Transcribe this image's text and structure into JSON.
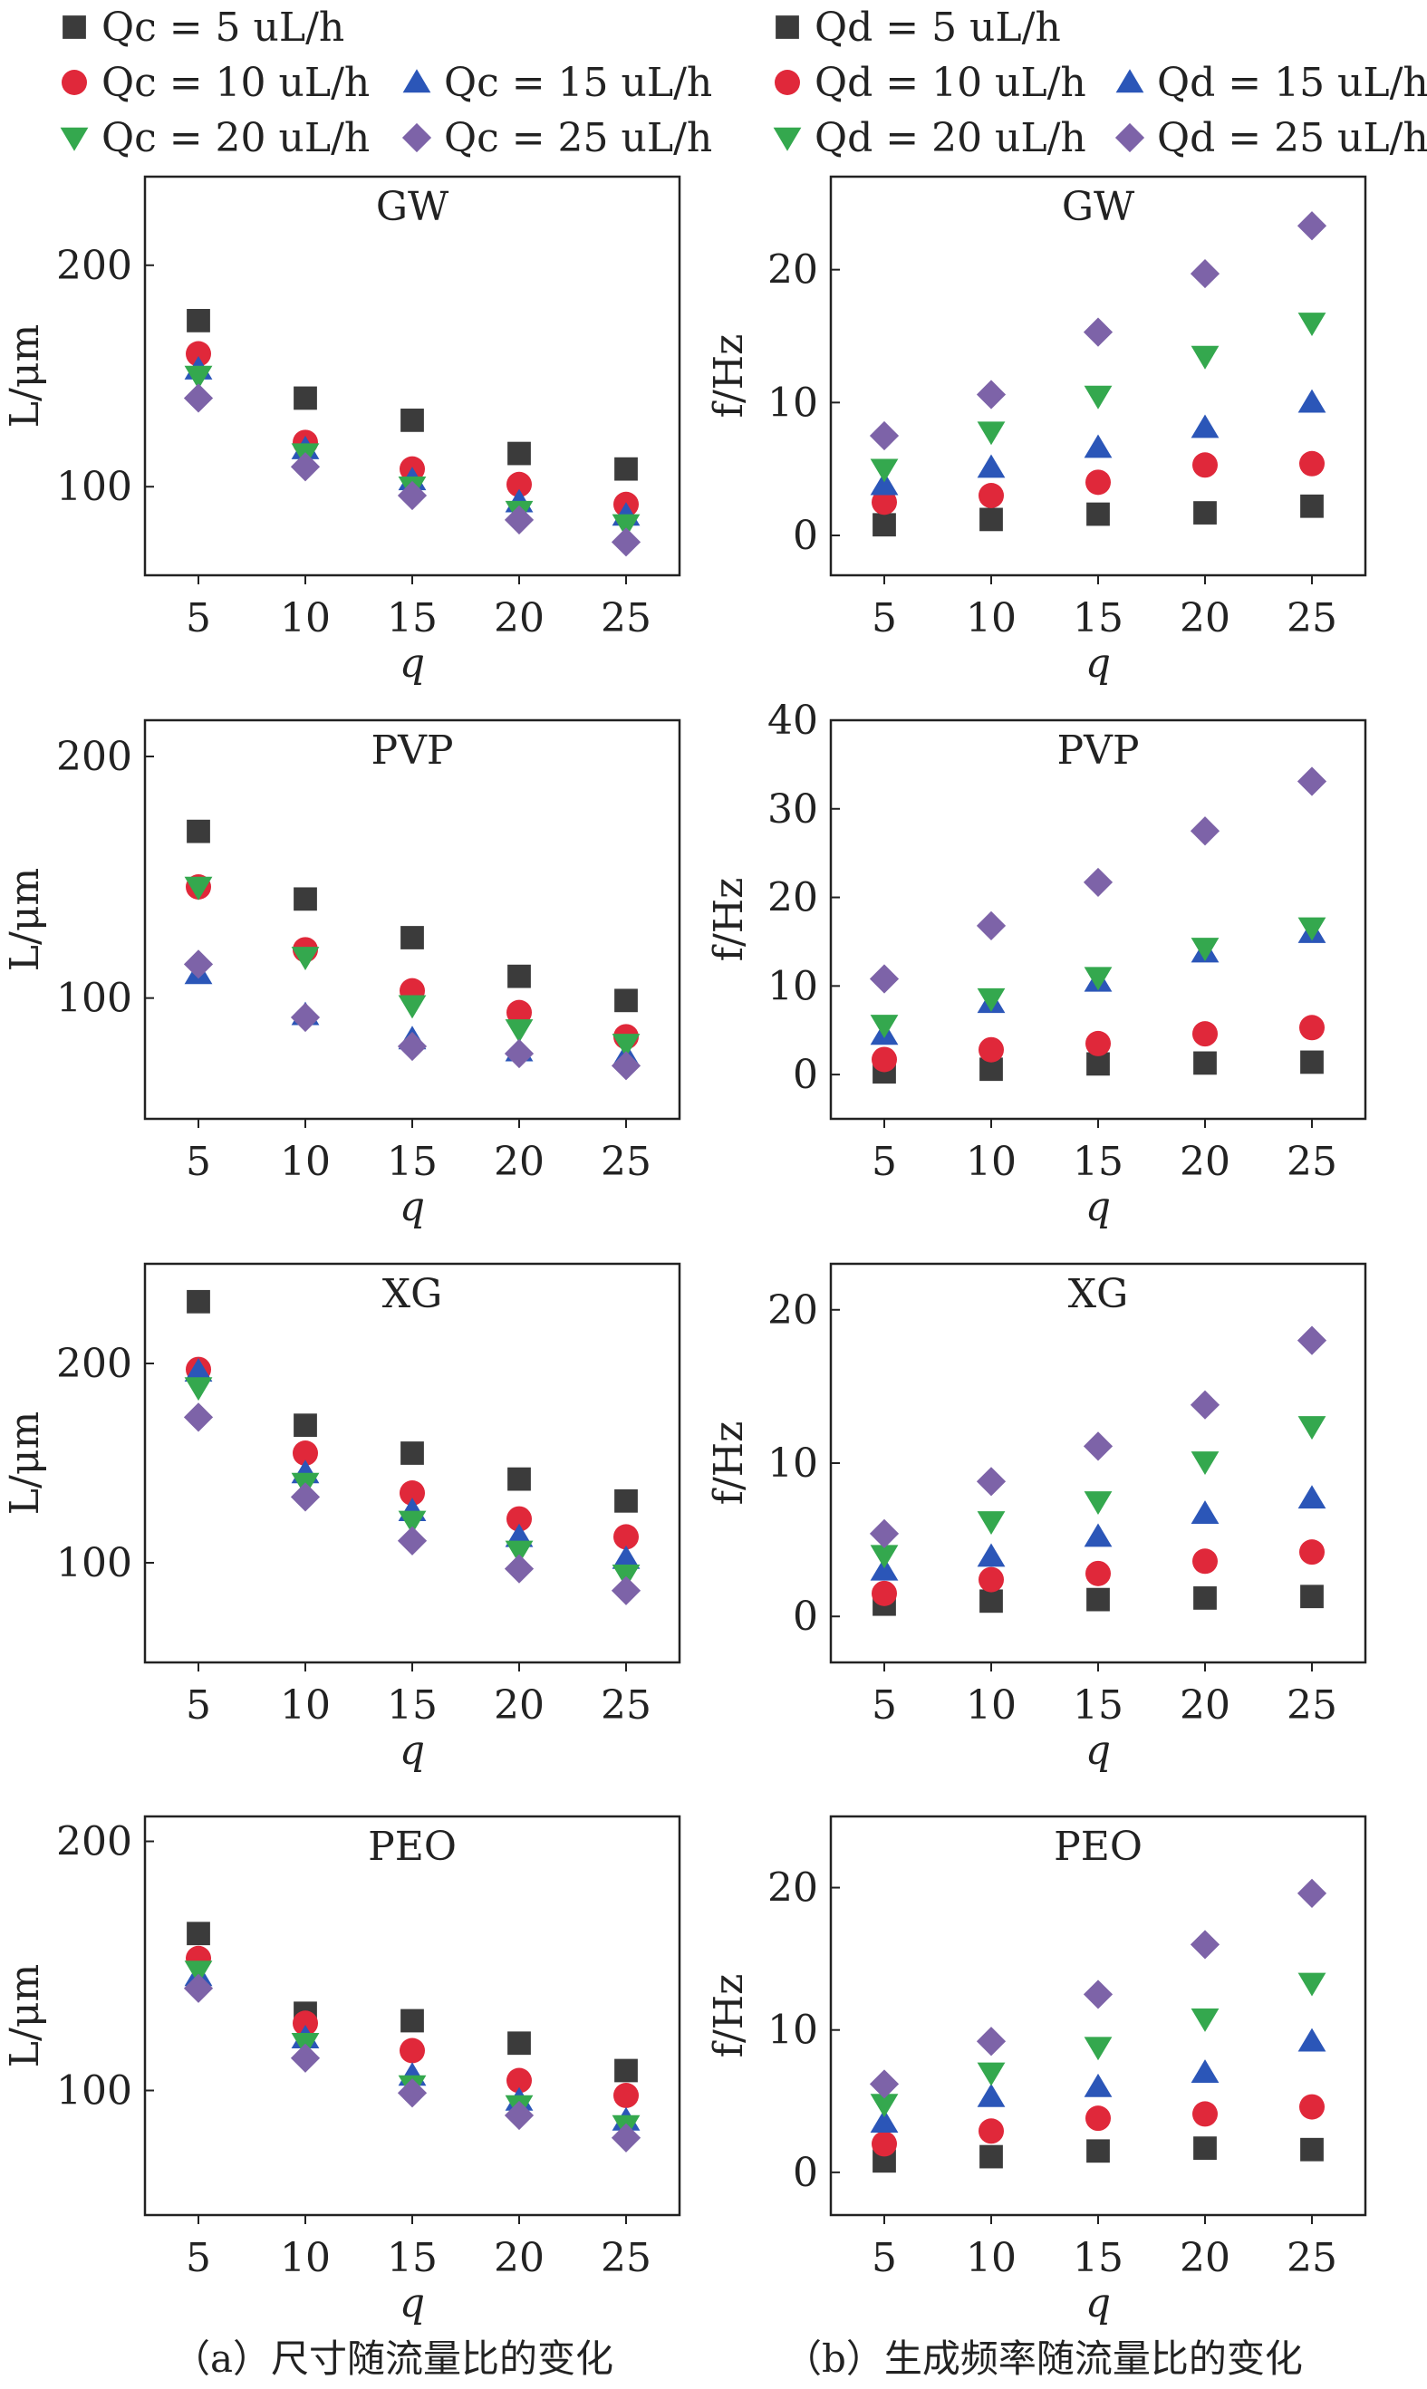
{
  "legends": {
    "a": [
      {
        "label": "Qc = 5 uL/h",
        "marker": "square",
        "color": "#3b3b3b"
      },
      {
        "label": "Qc = 10 uL/h",
        "marker": "circle",
        "color": "#e0283a"
      },
      {
        "label": "Qc = 15 uL/h",
        "marker": "triangle-up",
        "color": "#2b56b8"
      },
      {
        "label": "Qc = 20 uL/h",
        "marker": "triangle-down",
        "color": "#34a84e"
      },
      {
        "label": "Qc = 25 uL/h",
        "marker": "diamond",
        "color": "#7d63a8"
      }
    ],
    "b": [
      {
        "label": "Qd = 5 uL/h",
        "marker": "square",
        "color": "#3b3b3b"
      },
      {
        "label": "Qd = 10 uL/h",
        "marker": "circle",
        "color": "#e0283a"
      },
      {
        "label": "Qd = 15 uL/h",
        "marker": "triangle-up",
        "color": "#2b56b8"
      },
      {
        "label": "Qd = 20 uL/h",
        "marker": "triangle-down",
        "color": "#34a84e"
      },
      {
        "label": "Qd = 25 uL/h",
        "marker": "diamond",
        "color": "#7d63a8"
      }
    ]
  },
  "captions": {
    "a": "（a）尺寸随流量比的变化",
    "b": "（b）生成频率随流量比的变化"
  },
  "chart_data": [
    {
      "type": "scatter",
      "title": "GW",
      "xlabel": "q",
      "ylabel": "L/μm",
      "x": [
        5,
        10,
        15,
        20,
        25
      ],
      "ylim": [
        60,
        240
      ],
      "yticks": [
        100,
        200
      ],
      "series": [
        {
          "name": "Qc = 5 uL/h",
          "values": [
            175,
            140,
            130,
            115,
            108
          ]
        },
        {
          "name": "Qc = 10 uL/h",
          "values": [
            160,
            120,
            108,
            101,
            92
          ]
        },
        {
          "name": "Qc = 15 uL/h",
          "values": [
            153,
            117,
            103,
            93,
            87
          ]
        },
        {
          "name": "Qc = 20 uL/h",
          "values": [
            150,
            115,
            100,
            89,
            83
          ]
        },
        {
          "name": "Qc = 25 uL/h",
          "values": [
            140,
            109,
            96,
            85,
            75
          ]
        }
      ]
    },
    {
      "type": "scatter",
      "title": "GW",
      "xlabel": "q",
      "ylabel": "f/Hz",
      "x": [
        5,
        10,
        15,
        20,
        25
      ],
      "ylim": [
        -3,
        27
      ],
      "yticks": [
        0,
        10,
        20
      ],
      "series": [
        {
          "name": "Qd = 5 uL/h",
          "values": [
            0.8,
            1.2,
            1.6,
            1.7,
            2.2
          ]
        },
        {
          "name": "Qd = 10 uL/h",
          "values": [
            2.5,
            3.0,
            4.0,
            5.3,
            5.4
          ]
        },
        {
          "name": "Qd = 15 uL/h",
          "values": [
            3.8,
            5.1,
            6.6,
            8.1,
            10.0
          ]
        },
        {
          "name": "Qd = 20 uL/h",
          "values": [
            5.0,
            7.8,
            10.5,
            13.5,
            16.0
          ]
        },
        {
          "name": "Qd = 25 uL/h",
          "values": [
            7.5,
            10.6,
            15.3,
            19.7,
            23.3
          ]
        }
      ]
    },
    {
      "type": "scatter",
      "title": "PVP",
      "xlabel": "q",
      "ylabel": "L/μm",
      "x": [
        5,
        10,
        15,
        20,
        25
      ],
      "ylim": [
        50,
        215
      ],
      "yticks": [
        100,
        200
      ],
      "series": [
        {
          "name": "Qc = 5 uL/h",
          "values": [
            169,
            141,
            125,
            109,
            99
          ]
        },
        {
          "name": "Qc = 10 uL/h",
          "values": [
            146,
            120,
            103,
            94,
            84
          ]
        },
        {
          "name": "Qc = 15 uL/h",
          "values": [
            110,
            93,
            83,
            78,
            76
          ]
        },
        {
          "name": "Qc = 20 uL/h",
          "values": [
            146,
            117,
            97,
            87,
            81
          ]
        },
        {
          "name": "Qc = 25 uL/h",
          "values": [
            114,
            92,
            80,
            77,
            72
          ]
        }
      ]
    },
    {
      "type": "scatter",
      "title": "PVP",
      "xlabel": "q",
      "ylabel": "f/Hz",
      "x": [
        5,
        10,
        15,
        20,
        25
      ],
      "ylim": [
        -5,
        40
      ],
      "yticks": [
        0,
        10,
        20,
        30,
        40
      ],
      "series": [
        {
          "name": "Qd = 5 uL/h",
          "values": [
            0.3,
            0.6,
            1.2,
            1.3,
            1.4
          ]
        },
        {
          "name": "Qd = 10 uL/h",
          "values": [
            1.7,
            2.8,
            3.5,
            4.6,
            5.3
          ]
        },
        {
          "name": "Qd = 15 uL/h",
          "values": [
            4.5,
            8.1,
            10.5,
            13.8,
            16.0
          ]
        },
        {
          "name": "Qd = 20 uL/h",
          "values": [
            5.6,
            8.6,
            11.0,
            14.3,
            16.6
          ]
        },
        {
          "name": "Qd = 25 uL/h",
          "values": [
            10.8,
            16.8,
            21.7,
            27.5,
            33.1
          ]
        }
      ]
    },
    {
      "type": "scatter",
      "title": "XG",
      "xlabel": "q",
      "ylabel": "L/μm",
      "x": [
        5,
        10,
        15,
        20,
        25
      ],
      "ylim": [
        50,
        250
      ],
      "yticks": [
        100,
        200
      ],
      "series": [
        {
          "name": "Qc = 5 uL/h",
          "values": [
            231,
            169,
            155,
            142,
            131
          ]
        },
        {
          "name": "Qc = 10 uL/h",
          "values": [
            197,
            155,
            135,
            122,
            113
          ]
        },
        {
          "name": "Qc = 15 uL/h",
          "values": [
            196,
            145,
            126,
            113,
            102
          ]
        },
        {
          "name": "Qc = 20 uL/h",
          "values": [
            188,
            140,
            121,
            106,
            94
          ]
        },
        {
          "name": "Qc = 25 uL/h",
          "values": [
            173,
            133,
            111,
            97,
            86
          ]
        }
      ]
    },
    {
      "type": "scatter",
      "title": "XG",
      "xlabel": "q",
      "ylabel": "f/Hz",
      "x": [
        5,
        10,
        15,
        20,
        25
      ],
      "ylim": [
        -3,
        23
      ],
      "yticks": [
        0,
        10,
        20
      ],
      "series": [
        {
          "name": "Qd = 5 uL/h",
          "values": [
            0.8,
            1.0,
            1.1,
            1.2,
            1.3
          ]
        },
        {
          "name": "Qd = 10 uL/h",
          "values": [
            1.5,
            2.4,
            2.8,
            3.6,
            4.2
          ]
        },
        {
          "name": "Qd = 15 uL/h",
          "values": [
            3.0,
            3.9,
            5.2,
            6.7,
            7.7
          ]
        },
        {
          "name": "Qd = 20 uL/h",
          "values": [
            4.0,
            6.2,
            7.5,
            10.1,
            12.4
          ]
        },
        {
          "name": "Qd = 25 uL/h",
          "values": [
            5.4,
            8.8,
            11.1,
            13.8,
            18.0
          ]
        }
      ]
    },
    {
      "type": "scatter",
      "title": "PEO",
      "xlabel": "q",
      "ylabel": "L/μm",
      "x": [
        5,
        10,
        15,
        20,
        25
      ],
      "ylim": [
        50,
        210
      ],
      "yticks": [
        100,
        200
      ],
      "series": [
        {
          "name": "Qc = 5 uL/h",
          "values": [
            163,
            131,
            128,
            119,
            108
          ]
        },
        {
          "name": "Qc = 10 uL/h",
          "values": [
            153,
            127,
            116,
            104,
            98
          ]
        },
        {
          "name": "Qc = 15 uL/h",
          "values": [
            146,
            121,
            106,
            96,
            88
          ]
        },
        {
          "name": "Qc = 20 uL/h",
          "values": [
            148,
            119,
            102,
            94,
            86
          ]
        },
        {
          "name": "Qc = 25 uL/h",
          "values": [
            141,
            113,
            99,
            90,
            81
          ]
        }
      ]
    },
    {
      "type": "scatter",
      "title": "PEO",
      "xlabel": "q",
      "ylabel": "f/Hz",
      "x": [
        5,
        10,
        15,
        20,
        25
      ],
      "ylim": [
        -3,
        25
      ],
      "yticks": [
        0,
        10,
        20
      ],
      "series": [
        {
          "name": "Qd = 5 uL/h",
          "values": [
            0.8,
            1.1,
            1.5,
            1.7,
            1.6
          ]
        },
        {
          "name": "Qd = 10 uL/h",
          "values": [
            2.0,
            2.9,
            3.8,
            4.1,
            4.6
          ]
        },
        {
          "name": "Qd = 15 uL/h",
          "values": [
            3.5,
            5.3,
            6.0,
            7.0,
            9.2
          ]
        },
        {
          "name": "Qd = 20 uL/h",
          "values": [
            4.8,
            7.0,
            8.8,
            10.8,
            13.3
          ]
        },
        {
          "name": "Qd = 25 uL/h",
          "values": [
            6.2,
            9.2,
            12.5,
            16.0,
            19.6
          ]
        }
      ]
    }
  ]
}
